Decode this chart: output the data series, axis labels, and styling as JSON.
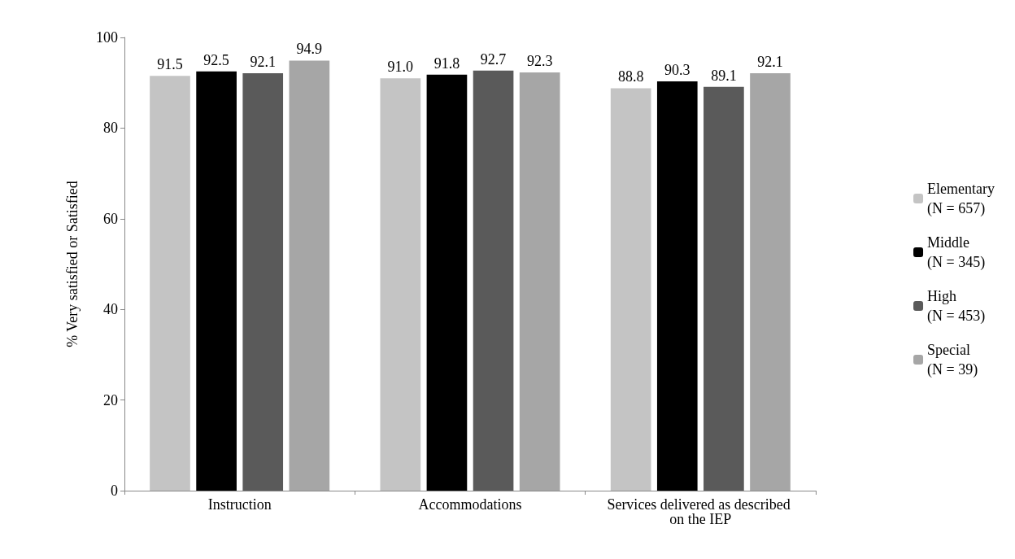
{
  "chart_data": {
    "type": "bar",
    "ylabel": "% Very satisfied or Satisfied",
    "categories": [
      "Instruction",
      "Accommodations",
      "Services delivered as described on the IEP"
    ],
    "series": [
      {
        "name": "Elementary (N = 657)",
        "color": "#c4c4c4",
        "values": [
          91.5,
          91.0,
          88.8
        ],
        "value_labels": [
          "91.5",
          "91.0",
          "88.8"
        ]
      },
      {
        "name": "Middle (N = 345)",
        "color": "#000000",
        "values": [
          92.5,
          91.8,
          90.3
        ],
        "value_labels": [
          "92.5",
          "91.8",
          "90.3"
        ]
      },
      {
        "name": "High (N = 453)",
        "color": "#5a5a5a",
        "values": [
          92.1,
          92.7,
          89.1
        ],
        "value_labels": [
          "92.1",
          "92.7",
          "89.1"
        ]
      },
      {
        "name": "Special (N = 39)",
        "color": "#a6a6a6",
        "values": [
          94.9,
          92.3,
          92.1
        ],
        "value_labels": [
          "94.9",
          "92.3",
          "92.1"
        ]
      }
    ],
    "ylim": [
      0,
      100
    ],
    "yticks": [
      0,
      20,
      40,
      60,
      80,
      100
    ],
    "grid": false,
    "legend": "right"
  }
}
